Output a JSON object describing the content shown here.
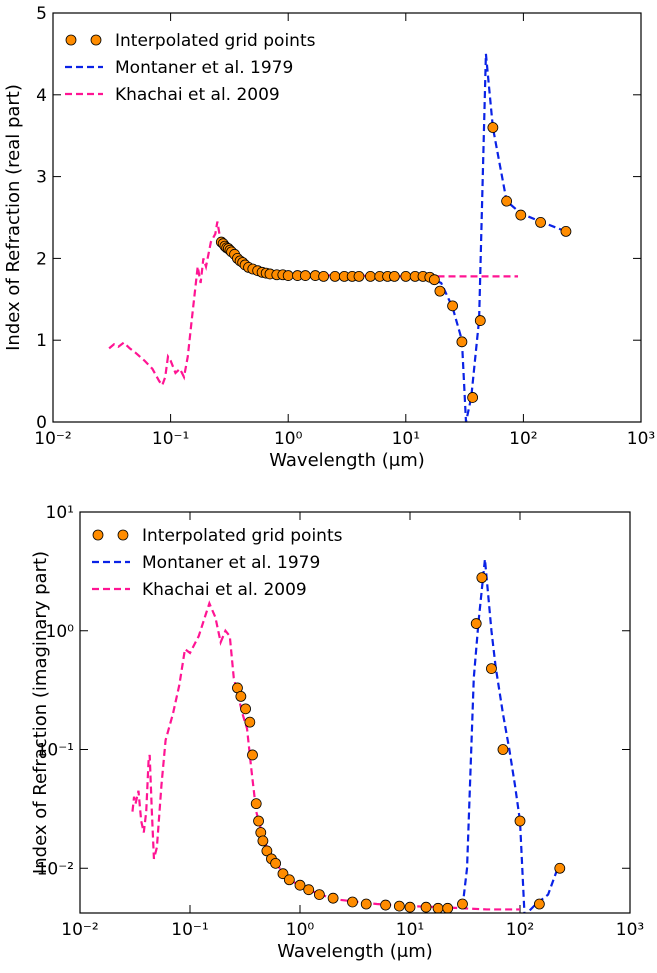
{
  "chart_data": [
    {
      "type": "line",
      "x_label": "Wavelength (μm)",
      "y_label": "Index of Refraction (real part)",
      "xscale": "log",
      "yscale": "linear",
      "legend": "upper left",
      "xlim": [
        0.01,
        1000
      ],
      "xticks": [
        {
          "value": 0.01,
          "label": "10⁻²"
        },
        {
          "value": 0.1,
          "label": "10⁻¹"
        },
        {
          "value": 1,
          "label": "10⁰"
        },
        {
          "value": 10,
          "label": "10¹"
        },
        {
          "value": 100,
          "label": "10²"
        },
        {
          "value": 1000,
          "label": "10³"
        }
      ],
      "ylim": [
        0,
        5
      ],
      "yticks": [
        0,
        1,
        2,
        3,
        4,
        5
      ],
      "series": [
        {
          "name": "Interpolated grid points",
          "style": "markers",
          "color": "#ff8c00",
          "edgecolor": "#000000",
          "x": [
            0.27,
            0.28,
            0.29,
            0.3,
            0.31,
            0.32,
            0.33,
            0.35,
            0.37,
            0.39,
            0.41,
            0.43,
            0.46,
            0.5,
            0.55,
            0.6,
            0.65,
            0.7,
            0.8,
            0.9,
            1,
            1.2,
            1.4,
            1.7,
            2,
            2.5,
            3,
            3.5,
            4,
            5,
            6,
            7,
            8,
            10,
            12,
            14,
            16,
            17.5,
            19.5,
            25,
            30,
            37,
            43,
            55,
            72,
            95,
            140,
            230
          ],
          "values": [
            2.2,
            2.18,
            2.15,
            2.13,
            2.12,
            2.1,
            2.08,
            2.05,
            2.0,
            1.97,
            1.95,
            1.92,
            1.89,
            1.87,
            1.85,
            1.83,
            1.82,
            1.81,
            1.8,
            1.8,
            1.79,
            1.79,
            1.79,
            1.79,
            1.78,
            1.78,
            1.78,
            1.78,
            1.78,
            1.78,
            1.78,
            1.78,
            1.78,
            1.78,
            1.78,
            1.78,
            1.77,
            1.74,
            1.6,
            1.42,
            0.98,
            0.3,
            1.24,
            3.6,
            2.7,
            2.53,
            2.44,
            2.33
          ]
        },
        {
          "name": "Montaner et al. 1979",
          "style": "dashed",
          "color": "#0a22e6",
          "x": [
            15,
            20,
            25,
            30,
            32.5,
            36,
            42,
            48,
            55,
            72,
            95,
            140,
            230
          ],
          "values": [
            1.78,
            1.7,
            1.4,
            1.0,
            0.0,
            0.3,
            1.25,
            4.5,
            3.6,
            2.7,
            2.55,
            2.45,
            2.33
          ]
        },
        {
          "name": "Khachai et al. 2009",
          "style": "dashed",
          "color": "#ff1493",
          "x": [
            0.03,
            0.033,
            0.036,
            0.04,
            0.045,
            0.05,
            0.06,
            0.07,
            0.08,
            0.085,
            0.09,
            0.095,
            0.1,
            0.11,
            0.12,
            0.13,
            0.14,
            0.15,
            0.17,
            0.18,
            0.19,
            0.2,
            0.22,
            0.24,
            0.25,
            0.26,
            0.28,
            0.3,
            0.35,
            0.4,
            0.5,
            0.7,
            1,
            3,
            10,
            20,
            50,
            90
          ],
          "values": [
            0.9,
            0.95,
            0.92,
            0.97,
            0.9,
            0.85,
            0.75,
            0.65,
            0.5,
            0.45,
            0.55,
            0.8,
            0.75,
            0.6,
            0.65,
            0.55,
            0.8,
            1.2,
            1.9,
            1.7,
            2.0,
            1.9,
            2.2,
            2.3,
            2.45,
            2.3,
            2.2,
            2.15,
            2.05,
            1.95,
            1.87,
            1.82,
            1.8,
            1.79,
            1.78,
            1.78,
            1.78,
            1.78
          ]
        }
      ]
    },
    {
      "type": "line",
      "x_label": "Wavelength (μm)",
      "y_label": "Index of Refraction (imaginary part)",
      "xscale": "log",
      "yscale": "log",
      "legend": "upper left",
      "xlim": [
        0.01,
        1000
      ],
      "xticks": [
        {
          "value": 0.01,
          "label": "10⁻²"
        },
        {
          "value": 0.1,
          "label": "10⁻¹"
        },
        {
          "value": 1,
          "label": "10⁰"
        },
        {
          "value": 10,
          "label": "10¹"
        },
        {
          "value": 100,
          "label": "10²"
        },
        {
          "value": 1000,
          "label": "10³"
        }
      ],
      "ylim": [
        0.0042,
        10
      ],
      "yticks": [
        {
          "value": 0.01,
          "label": "10⁻²"
        },
        {
          "value": 0.1,
          "label": "10⁻¹"
        },
        {
          "value": 1,
          "label": "10⁰"
        },
        {
          "value": 10,
          "label": "10¹"
        }
      ],
      "series": [
        {
          "name": "Interpolated grid points",
          "style": "markers",
          "color": "#ff8c00",
          "edgecolor": "#000000",
          "x": [
            0.27,
            0.29,
            0.32,
            0.35,
            0.37,
            0.4,
            0.42,
            0.44,
            0.46,
            0.5,
            0.55,
            0.6,
            0.7,
            0.8,
            1,
            1.2,
            1.5,
            2,
            3,
            4,
            6,
            8,
            10,
            14,
            18,
            22,
            30,
            40,
            45,
            55,
            70,
            100,
            150,
            230
          ],
          "values": [
            0.33,
            0.28,
            0.22,
            0.17,
            0.09,
            0.035,
            0.025,
            0.02,
            0.017,
            0.014,
            0.012,
            0.011,
            0.009,
            0.008,
            0.0072,
            0.0066,
            0.006,
            0.0056,
            0.0052,
            0.005,
            0.0049,
            0.0048,
            0.0047,
            0.0047,
            0.0046,
            0.0046,
            0.005,
            1.15,
            2.8,
            0.48,
            0.1,
            0.025,
            0.005,
            0.01
          ]
        },
        {
          "name": "Montaner et al. 1979",
          "style": "dashed",
          "color": "#0a22e6",
          "x": [
            30,
            33,
            38,
            42,
            48,
            55,
            60,
            70,
            80,
            90,
            100,
            110,
            140,
            180,
            220
          ],
          "values": [
            0.0047,
            0.01,
            0.4,
            1.2,
            4.0,
            1.0,
            0.5,
            0.2,
            0.1,
            0.05,
            0.025,
            0.004,
            0.005,
            0.006,
            0.01
          ]
        },
        {
          "name": "Khachai et al. 2009",
          "style": "dashed",
          "color": "#ff1493",
          "x": [
            0.03,
            0.031,
            0.032,
            0.034,
            0.036,
            0.038,
            0.04,
            0.042,
            0.043,
            0.045,
            0.047,
            0.05,
            0.055,
            0.06,
            0.07,
            0.08,
            0.09,
            0.1,
            0.12,
            0.14,
            0.15,
            0.17,
            0.19,
            0.21,
            0.23,
            0.25,
            0.27,
            0.3,
            0.33,
            0.36,
            0.4,
            0.45,
            0.5,
            0.7,
            1,
            2,
            5,
            10,
            20,
            30,
            50,
            100
          ],
          "values": [
            0.03,
            0.04,
            0.035,
            0.045,
            0.025,
            0.02,
            0.03,
            0.08,
            0.09,
            0.03,
            0.012,
            0.015,
            0.05,
            0.12,
            0.2,
            0.35,
            0.7,
            0.65,
            0.9,
            1.4,
            1.7,
            1.3,
            0.8,
            1.0,
            0.9,
            0.4,
            0.3,
            0.2,
            0.15,
            0.07,
            0.03,
            0.02,
            0.015,
            0.009,
            0.007,
            0.0055,
            0.005,
            0.0048,
            0.0047,
            0.0046,
            0.0045,
            0.0045
          ]
        }
      ]
    }
  ]
}
